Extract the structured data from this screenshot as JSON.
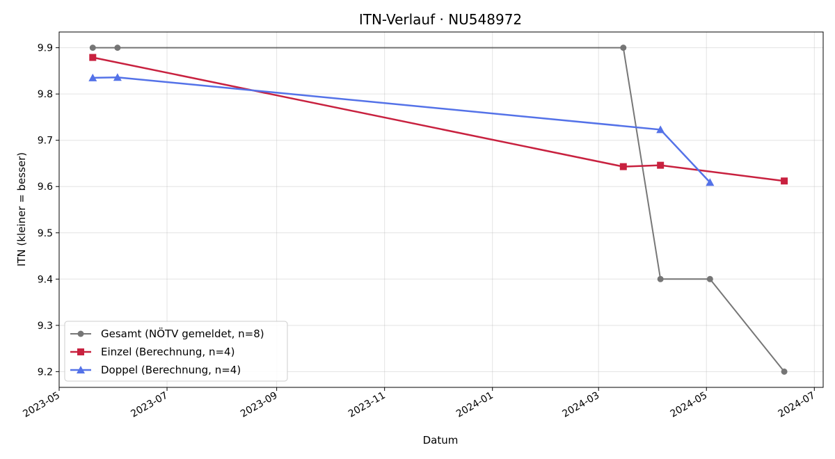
{
  "chart_data": {
    "type": "line",
    "title": "ITN-Verlauf · NU548972",
    "xlabel": "Datum",
    "ylabel": "ITN  (kleiner = besser)",
    "x_axis": "date",
    "xlim": [
      "2023-05-01",
      "2024-07-06"
    ],
    "ylim": [
      9.166,
      9.934
    ],
    "x_ticks": [
      "2023-05",
      "2023-07",
      "2023-09",
      "2023-11",
      "2024-01",
      "2024-03",
      "2024-05",
      "2024-07"
    ],
    "y_ticks": [
      "9.2",
      "9.3",
      "9.4",
      "9.5",
      "9.6",
      "9.7",
      "9.8",
      "9.9"
    ],
    "grid": true,
    "legend_position": "lower-left",
    "series": [
      {
        "name": "Gesamt (NÖTV gemeldet, n=8)",
        "color": "#555555",
        "marker": "circle",
        "points": [
          {
            "x": "2023-05-20",
            "y": 9.9
          },
          {
            "x": "2023-06-03",
            "y": 9.9
          },
          {
            "x": "2024-03-15",
            "y": 9.9
          },
          {
            "x": "2024-04-05",
            "y": 9.4
          },
          {
            "x": "2024-05-03",
            "y": 9.4
          },
          {
            "x": "2024-06-14",
            "y": 9.2
          }
        ]
      },
      {
        "name": "Einzel (Berechnung, n=4)",
        "color": "#c8213f",
        "marker": "square",
        "points": [
          {
            "x": "2023-05-20",
            "y": 9.879
          },
          {
            "x": "2024-03-15",
            "y": 9.643
          },
          {
            "x": "2024-04-05",
            "y": 9.646
          },
          {
            "x": "2024-06-14",
            "y": 9.612
          }
        ]
      },
      {
        "name": "Doppel (Berechnung, n=4)",
        "color": "#5472e8",
        "marker": "triangle",
        "points": [
          {
            "x": "2023-05-20",
            "y": 9.835
          },
          {
            "x": "2023-06-03",
            "y": 9.836
          },
          {
            "x": "2024-04-05",
            "y": 9.723
          },
          {
            "x": "2024-05-03",
            "y": 9.609
          }
        ]
      }
    ]
  }
}
